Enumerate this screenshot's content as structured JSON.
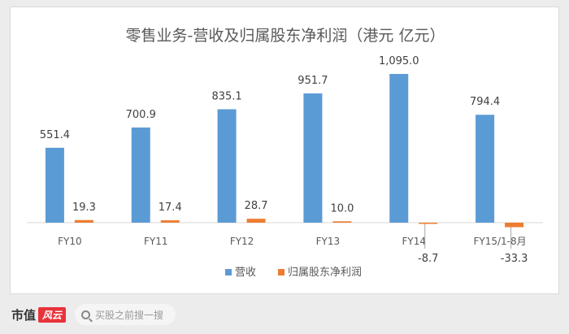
{
  "chart_data": {
    "type": "bar",
    "title": "零售业务-营收及归属股东净利润（港元 亿元）",
    "categories": [
      "FY10",
      "FY11",
      "FY12",
      "FY13",
      "FY14",
      "FY15/1-8月"
    ],
    "series": [
      {
        "name": "营收",
        "values": [
          551.4,
          700.9,
          835.1,
          951.7,
          1095.0,
          794.4
        ],
        "labels": [
          "551.4",
          "700.9",
          "835.1",
          "951.7",
          "1,095.0",
          "794.4"
        ],
        "color": "#5b9bd5"
      },
      {
        "name": "归属股东净利润",
        "values": [
          19.3,
          17.4,
          28.7,
          10.0,
          -8.7,
          -33.3
        ],
        "labels": [
          "19.3",
          "17.4",
          "28.7",
          "10.0",
          "-8.7",
          "-33.3"
        ],
        "color": "#ed7d31"
      }
    ],
    "ylim": [
      -60,
      1150
    ],
    "legend": "bottom",
    "grid": false
  },
  "footer": {
    "brand": "市值",
    "brand_badge": "风云",
    "search_placeholder": "买股之前搜一搜",
    "search_icon": "search-icon"
  }
}
